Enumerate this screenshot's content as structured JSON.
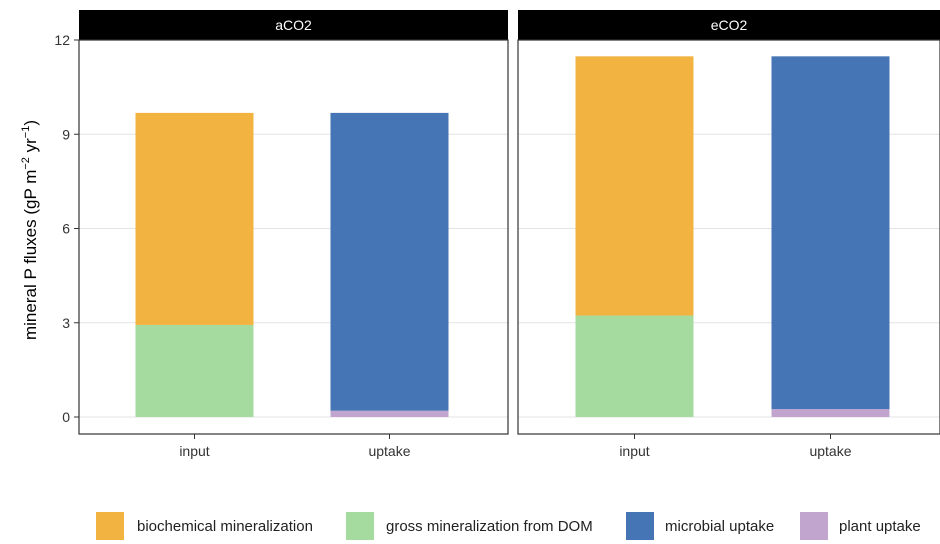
{
  "chart_data": {
    "type": "bar",
    "stacked": true,
    "facets": [
      "aCO2",
      "eCO2"
    ],
    "categories": [
      "input",
      "uptake"
    ],
    "ylabel": {
      "main": "mineral P fluxes (gP m",
      "exp1": "−2",
      "mid": " yr",
      "exp2": "−1",
      "end": ")"
    },
    "ylim": [
      0,
      12
    ],
    "yticks": [
      0,
      3,
      6,
      9,
      12
    ],
    "ytick_labels": [
      "0",
      "3",
      "6",
      "9",
      "12"
    ],
    "grid": true,
    "legend_position": "bottom",
    "series": [
      {
        "name": "biochemical mineralization",
        "color": "#F2B341",
        "values": {
          "aCO2": [
            6.75,
            0
          ],
          "eCO2": [
            8.25,
            0
          ]
        }
      },
      {
        "name": "gross mineralization from DOM",
        "color": "#A6DBA0",
        "values": {
          "aCO2": [
            2.93,
            0
          ],
          "eCO2": [
            3.23,
            0
          ]
        }
      },
      {
        "name": "microbial uptake",
        "color": "#4575B4",
        "values": {
          "aCO2": [
            0,
            9.48
          ],
          "eCO2": [
            0,
            11.23
          ]
        }
      },
      {
        "name": "plant uptake",
        "color": "#C2A5CF",
        "values": {
          "aCO2": [
            0,
            0.2
          ],
          "eCO2": [
            0,
            0.25
          ]
        }
      }
    ]
  }
}
